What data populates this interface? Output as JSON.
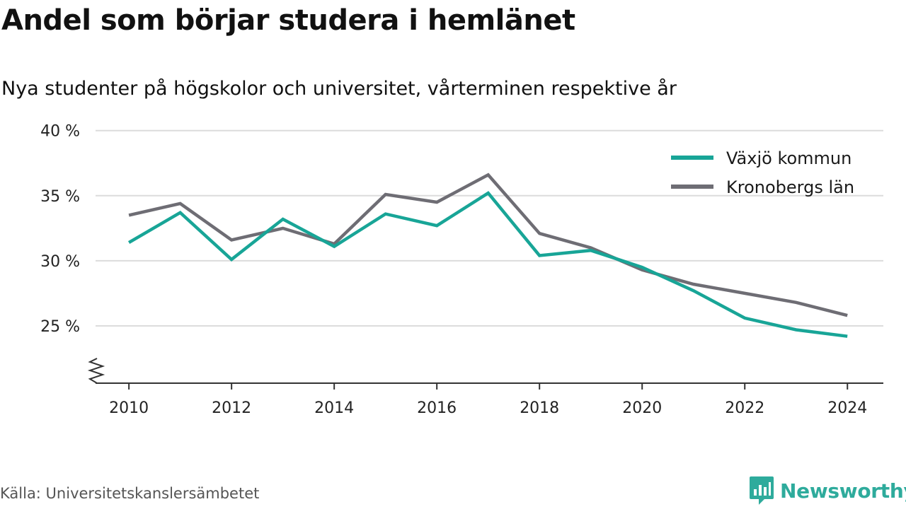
{
  "title": "Andel som börjar studera i hemlänet",
  "subtitle": "Nya studenter på högskolor och universitet, vårterminen respektive år",
  "source": "Källa: Universitetskanslersämbetet",
  "brand": {
    "name": "Newsworthy",
    "icon": "newsworthy-logo-icon",
    "color": "#2eab9c"
  },
  "colors": {
    "grid": "#dcdcdc",
    "axis": "#333333"
  },
  "chart_data": {
    "type": "line",
    "title": "Andel som börjar studera i hemlänet",
    "subtitle": "Nya studenter på högskolor och universitet, vårterminen respektive år",
    "x": [
      2010,
      2011,
      2012,
      2013,
      2014,
      2015,
      2016,
      2017,
      2018,
      2019,
      2020,
      2021,
      2022,
      2023,
      2024
    ],
    "x_ticks": [
      2010,
      2012,
      2014,
      2016,
      2018,
      2020,
      2022,
      2024
    ],
    "x_tick_labels": [
      "2010",
      "2012",
      "2014",
      "2016",
      "2018",
      "2020",
      "2022",
      "2024"
    ],
    "xlim": [
      2009.35,
      2024.7
    ],
    "y_ticks": [
      25,
      30,
      35,
      40
    ],
    "y_tick_labels": [
      "25 %",
      "30 %",
      "35 %",
      "40 %"
    ],
    "ylim": [
      20.6,
      40.8
    ],
    "axis_break": true,
    "grid": true,
    "legend_position": "top-right",
    "series": [
      {
        "name": "Växjö kommun",
        "color": "#18a597",
        "values": [
          31.4,
          33.7,
          30.1,
          33.2,
          31.1,
          33.6,
          32.7,
          35.2,
          30.4,
          30.8,
          29.5,
          27.7,
          25.6,
          24.7,
          24.2
        ]
      },
      {
        "name": "Kronobergs län",
        "color": "#6e6d74",
        "values": [
          33.5,
          34.4,
          31.6,
          32.5,
          31.3,
          35.1,
          34.5,
          36.6,
          32.1,
          31.0,
          29.3,
          28.2,
          27.5,
          26.8,
          25.8
        ]
      }
    ]
  }
}
